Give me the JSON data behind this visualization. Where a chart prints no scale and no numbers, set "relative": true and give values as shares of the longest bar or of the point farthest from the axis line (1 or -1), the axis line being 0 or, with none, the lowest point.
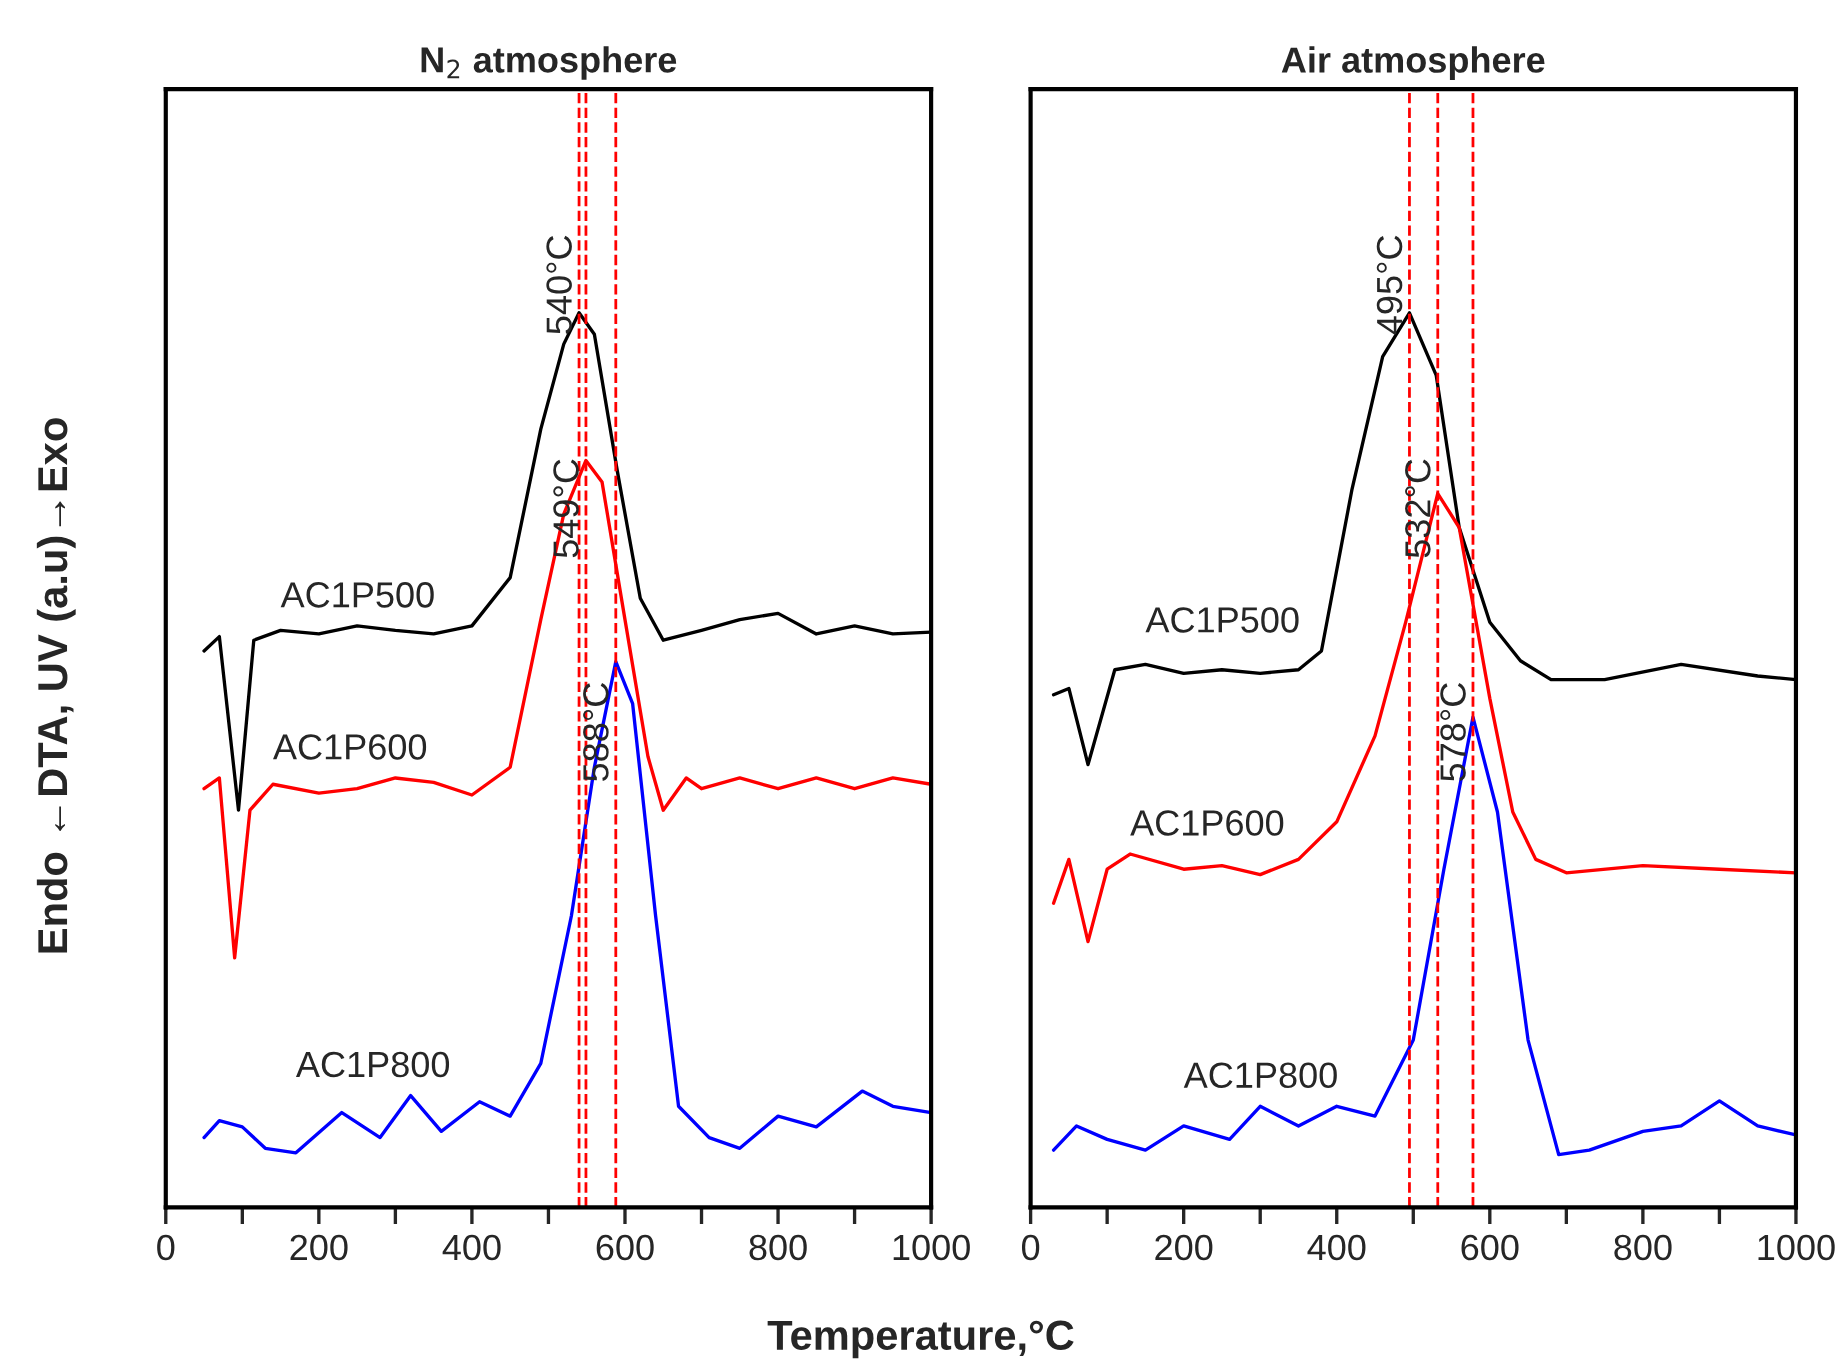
{
  "chart_data": [
    {
      "type": "line",
      "title": "N$_{2}$ atmosphere",
      "xlabel": "Temperature,°C",
      "ylabel": "Endo ←DTA, UV (a.u)→Exo",
      "relative": true,
      "xlim": [
        0,
        1000
      ],
      "xticks": [
        0,
        {
          "value": 100,
          "label": null
        },
        200,
        {
          "value": 300,
          "label": null
        },
        400,
        {
          "value": 500,
          "label": null
        },
        600,
        {
          "value": 700,
          "label": null
        },
        800,
        {
          "value": 900,
          "label": null
        },
        1000
      ],
      "series": [
        {
          "name": "AC1P500",
          "color": "#000000",
          "x": [
            50,
            70,
            95,
            115,
            150,
            200,
            250,
            300,
            350,
            400,
            450,
            490,
            520,
            540,
            560,
            590,
            620,
            650,
            700,
            750,
            800,
            850,
            900,
            950,
            1000
          ],
          "values": [
            0.622,
            0.638,
            0.444,
            0.634,
            0.645,
            0.641,
            0.65,
            0.645,
            0.641,
            0.65,
            0.704,
            0.87,
            0.965,
            1,
            0.976,
            0.823,
            0.681,
            0.634,
            0.645,
            0.657,
            0.664,
            0.641,
            0.65,
            0.641,
            0.643
          ]
        },
        {
          "name": "AC1P600",
          "color": "#ff0000",
          "x": [
            50,
            70,
            90,
            110,
            140,
            200,
            250,
            300,
            350,
            400,
            450,
            490,
            520,
            549,
            570,
            600,
            630,
            650,
            680,
            700,
            750,
            800,
            850,
            900,
            950,
            1000
          ],
          "values": [
            0.468,
            0.48,
            0.279,
            0.444,
            0.473,
            0.463,
            0.468,
            0.48,
            0.475,
            0.461,
            0.492,
            0.657,
            0.775,
            0.835,
            0.811,
            0.657,
            0.504,
            0.444,
            0.48,
            0.468,
            0.48,
            0.468,
            0.48,
            0.468,
            0.48,
            0.473
          ]
        },
        {
          "name": "AC1P800",
          "color": "#0000ff",
          "x": [
            50,
            70,
            100,
            130,
            170,
            230,
            280,
            320,
            360,
            410,
            450,
            490,
            530,
            560,
            588,
            610,
            640,
            670,
            710,
            750,
            800,
            850,
            910,
            950,
            1000
          ],
          "values": [
            0.078,
            0.097,
            0.09,
            0.066,
            0.061,
            0.106,
            0.078,
            0.125,
            0.085,
            0.118,
            0.102,
            0.161,
            0.326,
            0.492,
            0.61,
            0.563,
            0.326,
            0.113,
            0.078,
            0.066,
            0.102,
            0.09,
            0.13,
            0.113,
            0.106
          ]
        }
      ],
      "ref_lines": [
        {
          "axis": "x",
          "value": 540,
          "label": "540°C",
          "color": "#ff0000",
          "line_style": "dashed"
        },
        {
          "axis": "x",
          "value": 549,
          "label": "549°C",
          "color": "#ff0000",
          "line_style": "dashed"
        },
        {
          "axis": "x",
          "value": 588,
          "label": "588°C",
          "color": "#ff0000",
          "line_style": "dashed"
        }
      ]
    },
    {
      "type": "line",
      "title": "Air atmosphere",
      "relative": true,
      "xlim": [
        0,
        1000
      ],
      "xticks": [
        0,
        {
          "value": 100,
          "label": null
        },
        200,
        {
          "value": 300,
          "label": null
        },
        400,
        {
          "value": 500,
          "label": null
        },
        600,
        {
          "value": 700,
          "label": null
        },
        800,
        {
          "value": 900,
          "label": null
        },
        1000
      ],
      "series": [
        {
          "name": "AC1P500",
          "color": "#000000",
          "x": [
            30,
            50,
            75,
            110,
            150,
            200,
            250,
            300,
            350,
            380,
            420,
            460,
            495,
            530,
            560,
            600,
            640,
            680,
            750,
            850,
            950,
            1000
          ],
          "values": [
            0.573,
            0.58,
            0.495,
            0.601,
            0.607,
            0.597,
            0.601,
            0.597,
            0.601,
            0.622,
            0.803,
            0.951,
            1,
            0.93,
            0.76,
            0.654,
            0.611,
            0.59,
            0.59,
            0.607,
            0.594,
            0.59
          ]
        },
        {
          "name": "AC1P600",
          "color": "#ff0000",
          "x": [
            30,
            50,
            75,
            100,
            130,
            200,
            250,
            300,
            350,
            400,
            450,
            490,
            532,
            560,
            600,
            630,
            660,
            700,
            800,
            900,
            1000
          ],
          "values": [
            0.34,
            0.389,
            0.297,
            0.378,
            0.395,
            0.378,
            0.382,
            0.372,
            0.389,
            0.431,
            0.527,
            0.654,
            0.798,
            0.76,
            0.569,
            0.442,
            0.389,
            0.374,
            0.382,
            0.378,
            0.374
          ]
        },
        {
          "name": "AC1P800",
          "color": "#0000ff",
          "x": [
            30,
            60,
            100,
            150,
            200,
            260,
            300,
            350,
            400,
            450,
            500,
            540,
            578,
            610,
            650,
            690,
            730,
            800,
            850,
            900,
            950,
            1000
          ],
          "values": [
            0.064,
            0.091,
            0.076,
            0.064,
            0.091,
            0.076,
            0.113,
            0.091,
            0.113,
            0.102,
            0.187,
            0.378,
            0.548,
            0.442,
            0.187,
            0.059,
            0.064,
            0.085,
            0.091,
            0.119,
            0.091,
            0.081
          ]
        }
      ],
      "ref_lines": [
        {
          "axis": "x",
          "value": 495,
          "label": "495°C",
          "color": "#ff0000",
          "line_style": "dashed"
        },
        {
          "axis": "x",
          "value": 532,
          "label": "532°C",
          "color": "#ff0000",
          "line_style": "dashed"
        },
        {
          "axis": "x",
          "value": 578,
          "label": "578°C",
          "color": "#ff0000",
          "line_style": "dashed"
        }
      ]
    }
  ]
}
